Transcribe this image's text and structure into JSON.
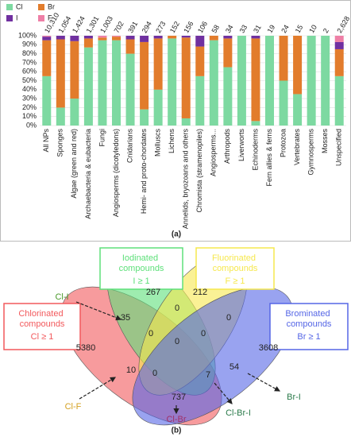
{
  "chart_data": {
    "type": "bar",
    "stacked": true,
    "categories": [
      "All NPs",
      "Sponges",
      "Algae (green and red)",
      "Archaebacteria & eubacteria",
      "Fungi",
      "Angiosperms (dicotyledons)",
      "Cnidarians",
      "Hemi- and proto-chordates",
      "Molluscs",
      "Lichens",
      "Annelids, bryozoans and others",
      "Chromista (stramenopiles)",
      "Angiosperms...",
      "Arthropods",
      "Liverworts",
      "Echinoderms",
      "Fern allies & ferns",
      "Protozoa",
      "Vertebrates",
      "Gymnosperms",
      "Mosses",
      "Unspecified"
    ],
    "series": [
      {
        "name": "Cl",
        "color": "#7dd9a1",
        "values": [
          55,
          20,
          30,
          87,
          95,
          95,
          80,
          18,
          40,
          97,
          8,
          55,
          95,
          65,
          100,
          5,
          100,
          50,
          35,
          100,
          100,
          55
        ]
      },
      {
        "name": "Br",
        "color": "#e27c2c",
        "values": [
          40,
          76,
          64,
          10,
          3,
          4,
          16,
          75,
          57,
          3,
          90,
          33,
          5,
          32,
          0,
          92,
          0,
          50,
          65,
          0,
          0,
          30
        ]
      },
      {
        "name": "I",
        "color": "#7030a0",
        "values": [
          4,
          4,
          6,
          3,
          0,
          0,
          4,
          7,
          3,
          0,
          2,
          12,
          0,
          3,
          0,
          3,
          0,
          0,
          0,
          0,
          0,
          8
        ]
      },
      {
        "name": "F",
        "color": "#ee7fa6",
        "values": [
          1,
          0,
          0,
          0,
          2,
          1,
          0,
          0,
          0,
          0,
          0,
          0,
          0,
          0,
          0,
          0,
          0,
          0,
          0,
          0,
          0,
          7
        ]
      }
    ],
    "totals": {
      "values": [
        10310,
        1054,
        1424,
        1301,
        1003,
        702,
        391,
        294,
        273,
        152,
        156,
        106,
        58,
        34,
        33,
        31,
        19,
        24,
        15,
        10,
        2,
        2628
      ],
      "value_labels": [
        "10,310",
        "1,054",
        "1,424",
        "1,301",
        "1,003",
        "702",
        "391",
        "294",
        "273",
        "152",
        "156",
        "106",
        "58",
        "34",
        "33",
        "31",
        "19",
        "24",
        "15",
        "10",
        "2",
        "2,628"
      ]
    },
    "ylim": [
      0,
      100
    ],
    "yticks": [
      {
        "value": 0,
        "label": "0%"
      },
      {
        "value": 10,
        "label": "10%"
      },
      {
        "value": 20,
        "label": "20%"
      },
      {
        "value": 30,
        "label": "30%"
      },
      {
        "value": 40,
        "label": "40%"
      },
      {
        "value": 50,
        "label": "50%"
      },
      {
        "value": 60,
        "label": "60%"
      },
      {
        "value": 70,
        "label": "70%"
      },
      {
        "value": 80,
        "label": "80%"
      },
      {
        "value": 90,
        "label": "90%"
      },
      {
        "value": 100,
        "label": "100%"
      }
    ],
    "legend": "top-left",
    "caption": "(a)"
  },
  "venn": {
    "sets": [
      {
        "title": "Chlorinated compounds",
        "rule": "Cl ≥ 1",
        "color": "#f2595c"
      },
      {
        "title": "Iodinated compounds",
        "rule": "I ≥ 1",
        "color": "#5ee07a"
      },
      {
        "title": "Fluorinated compounds",
        "rule": "F ≥ 1",
        "color": "#f6e84e"
      },
      {
        "title": "Brominated compounds",
        "rule": "Br ≥ 1",
        "color": "#5566e6"
      }
    ],
    "regions": [
      267,
      212,
      5380,
      3608,
      35,
      0,
      0,
      0,
      0,
      0,
      10,
      0,
      7,
      54,
      737
    ],
    "pair_labels": [
      "Cl-I",
      "Cl-F",
      "Cl-Br",
      "Cl-Br-I",
      "Br-I"
    ],
    "caption": "(b)"
  }
}
